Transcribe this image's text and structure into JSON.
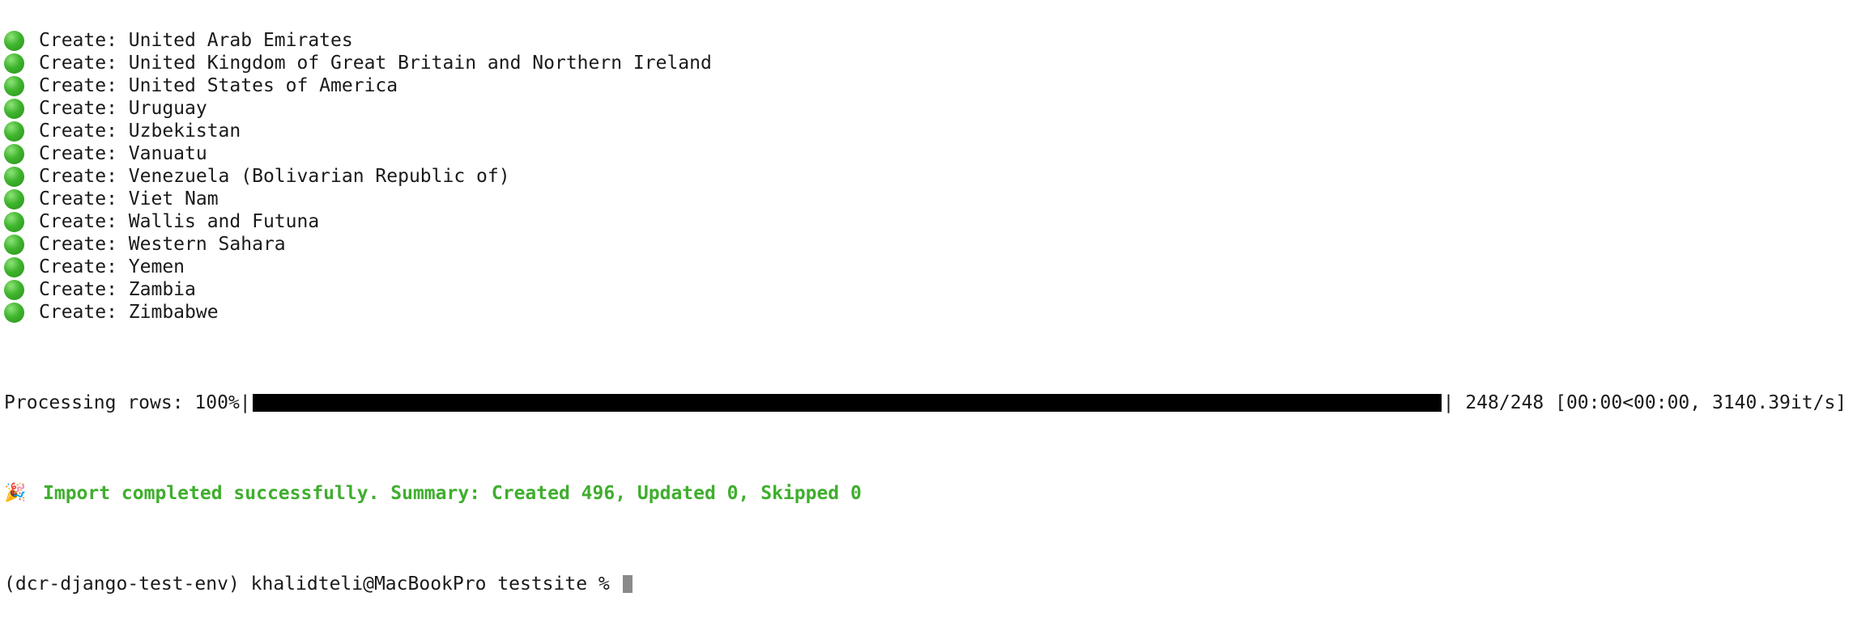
{
  "terminal": {
    "create_lines": [
      "Create: United Arab Emirates",
      "Create: United Kingdom of Great Britain and Northern Ireland",
      "Create: United States of America",
      "Create: Uruguay",
      "Create: Uzbekistan",
      "Create: Vanuatu",
      "Create: Venezuela (Bolivarian Republic of)",
      "Create: Viet Nam",
      "Create: Wallis and Futuna",
      "Create: Western Sahara",
      "Create: Yemen",
      "Create: Zambia",
      "Create: Zimbabwe"
    ],
    "status_icon": "green-circle-icon",
    "status_color": "#3fb52d",
    "progress": {
      "label": "Processing rows: 100%|",
      "fraction": 1.0,
      "suffix": "| 248/248 [00:00<00:00, 3140.39it/s]"
    },
    "summary": {
      "icon": "party-popper-icon",
      "icon_glyph": "🎉",
      "text": "Import completed successfully. Summary: Created 496, Updated 0, Skipped 0",
      "color": "#3fae2e"
    },
    "prompt": {
      "text": "(dcr-django-test-env) khalidteli@MacBookPro testsite % "
    }
  }
}
